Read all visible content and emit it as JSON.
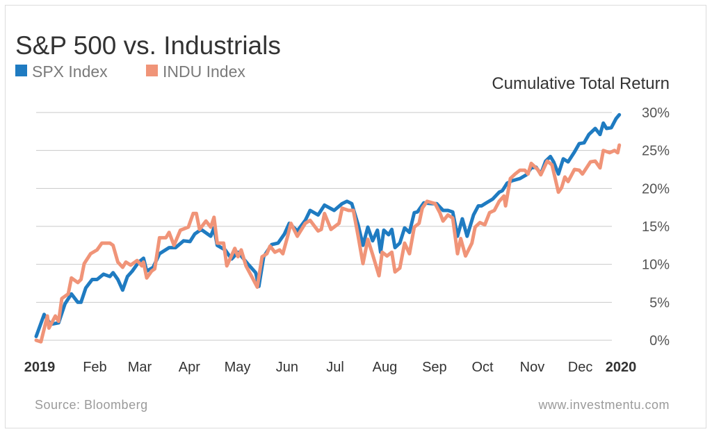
{
  "chart_data": {
    "type": "line",
    "title": "S&P 500 vs. Industrials",
    "ylabel": "Cumulative Total Return",
    "xlabel": "",
    "xlim": [
      "2019-01-01",
      "2020-01-01"
    ],
    "ylim": [
      0,
      30
    ],
    "y_ticks": [
      "0%",
      "5%",
      "10%",
      "15%",
      "20%",
      "25%",
      "30%"
    ],
    "x_ticks": [
      {
        "date": "2019-01-01",
        "label": "2019",
        "bold": true
      },
      {
        "date": "2019-02-01",
        "label": "Feb"
      },
      {
        "date": "2019-03-01",
        "label": "Mar"
      },
      {
        "date": "2019-04-01",
        "label": "Apr"
      },
      {
        "date": "2019-05-01",
        "label": "May"
      },
      {
        "date": "2019-06-01",
        "label": "Jun"
      },
      {
        "date": "2019-07-01",
        "label": "Jul"
      },
      {
        "date": "2019-08-01",
        "label": "Aug"
      },
      {
        "date": "2019-09-01",
        "label": "Sep"
      },
      {
        "date": "2019-10-01",
        "label": "Oct"
      },
      {
        "date": "2019-11-01",
        "label": "Nov"
      },
      {
        "date": "2019-12-01",
        "label": "Dec"
      },
      {
        "date": "2020-01-01",
        "label": "2020",
        "bold": true
      }
    ],
    "grid": true,
    "legend_position": "top-left",
    "series": [
      {
        "name": "SPX Index",
        "color": "#1f7bc1",
        "points": [
          [
            "2019-01-01",
            0.5
          ],
          [
            "2019-01-06",
            3.4
          ],
          [
            "2019-01-10",
            2.1
          ],
          [
            "2019-01-15",
            2.3
          ],
          [
            "2019-01-19",
            4.8
          ],
          [
            "2019-01-23",
            6.1
          ],
          [
            "2019-01-27",
            5.0
          ],
          [
            "2019-01-29",
            5.0
          ],
          [
            "2019-02-01",
            6.9
          ],
          [
            "2019-02-05",
            8.0
          ],
          [
            "2019-02-08",
            8.0
          ],
          [
            "2019-02-12",
            8.7
          ],
          [
            "2019-02-16",
            8.4
          ],
          [
            "2019-02-18",
            8.9
          ],
          [
            "2019-02-21",
            8.0
          ],
          [
            "2019-02-24",
            6.6
          ],
          [
            "2019-02-27",
            8.4
          ],
          [
            "2019-03-02",
            9.1
          ],
          [
            "2019-03-06",
            10.3
          ],
          [
            "2019-03-09",
            10.8
          ],
          [
            "2019-03-11",
            9.1
          ],
          [
            "2019-03-15",
            9.6
          ],
          [
            "2019-03-19",
            11.4
          ],
          [
            "2019-03-25",
            12.2
          ],
          [
            "2019-03-29",
            12.2
          ],
          [
            "2019-04-03",
            13.1
          ],
          [
            "2019-04-07",
            13.0
          ],
          [
            "2019-04-10",
            14.0
          ],
          [
            "2019-04-14",
            14.6
          ],
          [
            "2019-04-20",
            13.7
          ],
          [
            "2019-04-22",
            14.8
          ],
          [
            "2019-04-24",
            12.5
          ],
          [
            "2019-04-29",
            11.9
          ],
          [
            "2019-05-03",
            10.7
          ],
          [
            "2019-05-07",
            11.6
          ],
          [
            "2019-05-13",
            10.1
          ],
          [
            "2019-05-18",
            8.9
          ],
          [
            "2019-05-20",
            7.1
          ],
          [
            "2019-05-23",
            11.0
          ],
          [
            "2019-05-28",
            12.6
          ],
          [
            "2019-06-01",
            12.8
          ],
          [
            "2019-06-05",
            14.0
          ],
          [
            "2019-06-08",
            15.4
          ],
          [
            "2019-06-13",
            14.4
          ],
          [
            "2019-06-18",
            15.8
          ],
          [
            "2019-06-21",
            17.1
          ],
          [
            "2019-06-26",
            16.5
          ],
          [
            "2019-06-30",
            17.8
          ],
          [
            "2019-07-06",
            17.1
          ],
          [
            "2019-07-11",
            18.0
          ],
          [
            "2019-07-14",
            18.3
          ],
          [
            "2019-07-17",
            18.0
          ],
          [
            "2019-07-21",
            15.2
          ],
          [
            "2019-07-24",
            12.5
          ],
          [
            "2019-07-27",
            14.9
          ],
          [
            "2019-07-30",
            13.1
          ],
          [
            "2019-08-02",
            14.5
          ],
          [
            "2019-08-04",
            11.6
          ],
          [
            "2019-08-06",
            14.5
          ],
          [
            "2019-08-09",
            13.9
          ],
          [
            "2019-08-11",
            14.6
          ],
          [
            "2019-08-13",
            12.2
          ],
          [
            "2019-08-16",
            12.8
          ],
          [
            "2019-08-19",
            14.8
          ],
          [
            "2019-08-22",
            14.2
          ],
          [
            "2019-08-25",
            16.8
          ],
          [
            "2019-08-27",
            16.9
          ],
          [
            "2019-08-31",
            18.1
          ],
          [
            "2019-09-05",
            18.0
          ],
          [
            "2019-09-08",
            18.0
          ],
          [
            "2019-09-12",
            17.1
          ],
          [
            "2019-09-15",
            17.1
          ],
          [
            "2019-09-18",
            16.9
          ],
          [
            "2019-09-21",
            13.7
          ],
          [
            "2019-09-24",
            16.0
          ],
          [
            "2019-09-27",
            13.7
          ],
          [
            "2019-10-01",
            16.5
          ],
          [
            "2019-10-04",
            17.7
          ],
          [
            "2019-10-06",
            17.7
          ],
          [
            "2019-10-09",
            18.1
          ],
          [
            "2019-10-13",
            18.6
          ],
          [
            "2019-10-17",
            19.5
          ],
          [
            "2019-10-19",
            19.7
          ],
          [
            "2019-10-22",
            20.7
          ],
          [
            "2019-10-25",
            21.0
          ],
          [
            "2019-10-30",
            21.3
          ],
          [
            "2019-11-03",
            21.8
          ],
          [
            "2019-11-06",
            22.7
          ],
          [
            "2019-11-09",
            22.8
          ],
          [
            "2019-11-12",
            21.9
          ],
          [
            "2019-11-15",
            23.6
          ],
          [
            "2019-11-18",
            24.2
          ],
          [
            "2019-11-20",
            23.5
          ],
          [
            "2019-11-23",
            21.9
          ],
          [
            "2019-11-26",
            23.9
          ],
          [
            "2019-11-29",
            23.5
          ],
          [
            "2019-12-03",
            24.8
          ],
          [
            "2019-12-06",
            25.9
          ],
          [
            "2019-12-09",
            26.0
          ],
          [
            "2019-12-12",
            27.1
          ],
          [
            "2019-12-16",
            27.9
          ],
          [
            "2019-12-19",
            27.1
          ],
          [
            "2019-12-21",
            28.6
          ],
          [
            "2019-12-23",
            27.9
          ],
          [
            "2019-12-26",
            28.0
          ],
          [
            "2019-12-29",
            29.2
          ],
          [
            "2019-12-31",
            29.7
          ]
        ]
      },
      {
        "name": "INDU Index",
        "color": "#f09478",
        "points": [
          [
            "2019-01-01",
            0.0
          ],
          [
            "2019-01-04",
            -0.2
          ],
          [
            "2019-01-08",
            3.2
          ],
          [
            "2019-01-09",
            1.6
          ],
          [
            "2019-01-13",
            3.2
          ],
          [
            "2019-01-15",
            2.5
          ],
          [
            "2019-01-17",
            5.5
          ],
          [
            "2019-01-21",
            6.1
          ],
          [
            "2019-01-23",
            8.2
          ],
          [
            "2019-01-27",
            7.6
          ],
          [
            "2019-01-29",
            8.0
          ],
          [
            "2019-01-31",
            10.1
          ],
          [
            "2019-02-04",
            11.4
          ],
          [
            "2019-02-08",
            11.9
          ],
          [
            "2019-02-11",
            12.8
          ],
          [
            "2019-02-16",
            12.8
          ],
          [
            "2019-02-18",
            12.5
          ],
          [
            "2019-02-21",
            10.3
          ],
          [
            "2019-02-24",
            9.6
          ],
          [
            "2019-02-26",
            10.3
          ],
          [
            "2019-03-01",
            9.9
          ],
          [
            "2019-03-05",
            10.5
          ],
          [
            "2019-03-08",
            9.8
          ],
          [
            "2019-03-09",
            10.3
          ],
          [
            "2019-03-11",
            8.2
          ],
          [
            "2019-03-14",
            9.1
          ],
          [
            "2019-03-16",
            9.4
          ],
          [
            "2019-03-19",
            13.5
          ],
          [
            "2019-03-23",
            13.5
          ],
          [
            "2019-03-25",
            14.2
          ],
          [
            "2019-03-28",
            12.5
          ],
          [
            "2019-04-01",
            14.5
          ],
          [
            "2019-04-06",
            14.9
          ],
          [
            "2019-04-09",
            16.7
          ],
          [
            "2019-04-11",
            16.7
          ],
          [
            "2019-04-13",
            14.6
          ],
          [
            "2019-04-17",
            15.7
          ],
          [
            "2019-04-20",
            14.9
          ],
          [
            "2019-04-22",
            16.2
          ],
          [
            "2019-04-24",
            12.8
          ],
          [
            "2019-04-28",
            12.8
          ],
          [
            "2019-04-30",
            9.8
          ],
          [
            "2019-05-05",
            12.1
          ],
          [
            "2019-05-07",
            11.0
          ],
          [
            "2019-05-09",
            11.9
          ],
          [
            "2019-05-12",
            9.8
          ],
          [
            "2019-05-16",
            8.2
          ],
          [
            "2019-05-19",
            7.0
          ],
          [
            "2019-05-22",
            11.0
          ],
          [
            "2019-05-25",
            11.4
          ],
          [
            "2019-05-27",
            12.4
          ],
          [
            "2019-05-30",
            11.6
          ],
          [
            "2019-06-02",
            11.9
          ],
          [
            "2019-06-04",
            11.4
          ],
          [
            "2019-06-07",
            13.7
          ],
          [
            "2019-06-09",
            15.4
          ],
          [
            "2019-06-13",
            13.7
          ],
          [
            "2019-06-18",
            15.4
          ],
          [
            "2019-06-21",
            15.8
          ],
          [
            "2019-06-26",
            14.4
          ],
          [
            "2019-06-28",
            14.6
          ],
          [
            "2019-06-30",
            16.7
          ],
          [
            "2019-07-04",
            14.6
          ],
          [
            "2019-07-09",
            15.4
          ],
          [
            "2019-07-11",
            17.4
          ],
          [
            "2019-07-15",
            17.1
          ],
          [
            "2019-07-18",
            17.1
          ],
          [
            "2019-07-21",
            13.7
          ],
          [
            "2019-07-24",
            10.1
          ],
          [
            "2019-07-27",
            13.3
          ],
          [
            "2019-07-30",
            11.3
          ],
          [
            "2019-08-03",
            8.5
          ],
          [
            "2019-08-05",
            11.6
          ],
          [
            "2019-08-08",
            11.1
          ],
          [
            "2019-08-11",
            11.6
          ],
          [
            "2019-08-13",
            9.0
          ],
          [
            "2019-08-16",
            9.5
          ],
          [
            "2019-08-19",
            12.8
          ],
          [
            "2019-08-22",
            11.4
          ],
          [
            "2019-08-25",
            14.9
          ],
          [
            "2019-08-28",
            15.4
          ],
          [
            "2019-08-30",
            17.4
          ],
          [
            "2019-09-02",
            18.3
          ],
          [
            "2019-09-07",
            18.0
          ],
          [
            "2019-09-10",
            16.8
          ],
          [
            "2019-09-12",
            15.7
          ],
          [
            "2019-09-15",
            16.5
          ],
          [
            "2019-09-18",
            16.1
          ],
          [
            "2019-09-21",
            11.4
          ],
          [
            "2019-09-23",
            13.4
          ],
          [
            "2019-09-26",
            11.1
          ],
          [
            "2019-09-30",
            12.8
          ],
          [
            "2019-10-02",
            14.9
          ],
          [
            "2019-10-05",
            15.5
          ],
          [
            "2019-10-08",
            15.2
          ],
          [
            "2019-10-11",
            16.8
          ],
          [
            "2019-10-14",
            17.1
          ],
          [
            "2019-10-17",
            18.3
          ],
          [
            "2019-10-20",
            19.0
          ],
          [
            "2019-10-21",
            17.7
          ],
          [
            "2019-10-24",
            21.3
          ],
          [
            "2019-10-27",
            21.9
          ],
          [
            "2019-10-30",
            22.4
          ],
          [
            "2019-11-02",
            22.4
          ],
          [
            "2019-11-04",
            21.9
          ],
          [
            "2019-11-06",
            23.3
          ],
          [
            "2019-11-10",
            22.5
          ],
          [
            "2019-11-12",
            21.8
          ],
          [
            "2019-11-16",
            23.6
          ],
          [
            "2019-11-19",
            23.1
          ],
          [
            "2019-11-21",
            21.3
          ],
          [
            "2019-11-23",
            19.5
          ],
          [
            "2019-11-25",
            20.1
          ],
          [
            "2019-11-27",
            21.5
          ],
          [
            "2019-11-29",
            20.9
          ],
          [
            "2019-12-03",
            22.5
          ],
          [
            "2019-12-06",
            22.4
          ],
          [
            "2019-12-08",
            21.9
          ],
          [
            "2019-12-13",
            23.5
          ],
          [
            "2019-12-16",
            23.6
          ],
          [
            "2019-12-19",
            22.7
          ],
          [
            "2019-12-21",
            25.0
          ],
          [
            "2019-12-25",
            24.7
          ],
          [
            "2019-12-28",
            25.0
          ],
          [
            "2019-12-30",
            24.7
          ],
          [
            "2019-12-31",
            25.7
          ]
        ]
      }
    ]
  },
  "footer": {
    "source": "Source: Bloomberg",
    "website": "www.investmentu.com"
  }
}
